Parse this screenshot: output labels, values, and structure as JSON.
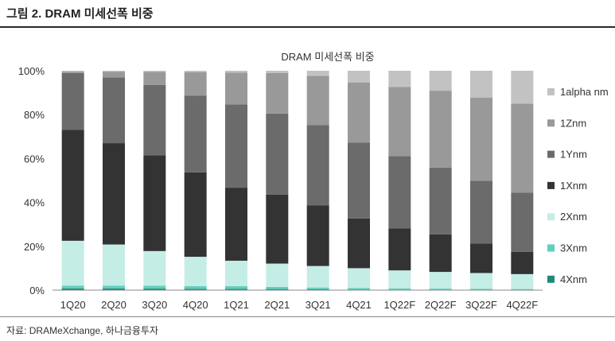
{
  "header": {
    "title": "그림 2. DRAM 미세선폭 비중"
  },
  "footer": {
    "source": "자료: DRAMeXchange, 하나금융투자"
  },
  "colors": {
    "4Xnm": "#1e8a78",
    "3Xnm": "#5fcfbe",
    "2Xnm": "#c4ede6",
    "1Xnm": "#333333",
    "1Ynm": "#6b6b6b",
    "1Znm": "#999999",
    "1alpha nm": "#c2c2c2"
  },
  "chart_data": {
    "type": "bar",
    "stacked": true,
    "title": "DRAM 미세선폭 비중",
    "xlabel": "",
    "ylabel": "",
    "ylim": [
      0,
      100
    ],
    "y_ticks": [
      "0%",
      "20%",
      "40%",
      "60%",
      "80%",
      "100%"
    ],
    "grid": false,
    "legend_position": "right",
    "categories": [
      "1Q20",
      "2Q20",
      "3Q20",
      "4Q20",
      "1Q21",
      "2Q21",
      "3Q21",
      "4Q21",
      "1Q22F",
      "2Q22F",
      "3Q22F",
      "4Q22F"
    ],
    "series": [
      {
        "name": "4Xnm",
        "values": [
          0.8,
          0.8,
          0.7,
          0.6,
          0.6,
          0.5,
          0.4,
          0.3,
          0.2,
          0.2,
          0.1,
          0.1
        ]
      },
      {
        "name": "3Xnm",
        "values": [
          1.2,
          1.2,
          1.3,
          1.2,
          1.2,
          1.0,
          0.8,
          0.7,
          0.6,
          0.5,
          0.5,
          0.4
        ]
      },
      {
        "name": "2Xnm",
        "values": [
          20.5,
          18.8,
          15.8,
          13.4,
          11.6,
          10.6,
          9.8,
          9.0,
          8.2,
          7.6,
          7.2,
          6.8
        ]
      },
      {
        "name": "1Xnm",
        "values": [
          50.5,
          46.2,
          43.7,
          38.5,
          33.3,
          31.4,
          27.7,
          22.7,
          19.1,
          17.1,
          13.5,
          10.2
        ]
      },
      {
        "name": "1Ynm",
        "values": [
          26.0,
          30.0,
          32.0,
          35.0,
          38.0,
          37.0,
          36.5,
          34.5,
          33.0,
          30.5,
          28.5,
          27.0
        ]
      },
      {
        "name": "1Znm",
        "values": [
          0.6,
          2.6,
          6.0,
          10.7,
          14.5,
          18.5,
          22.5,
          27.5,
          31.5,
          35.0,
          38.0,
          40.5
        ]
      },
      {
        "name": "1alpha nm",
        "values": [
          0.4,
          0.4,
          0.5,
          0.6,
          0.8,
          1.0,
          2.3,
          5.3,
          7.4,
          9.1,
          12.2,
          15.0
        ]
      }
    ]
  }
}
